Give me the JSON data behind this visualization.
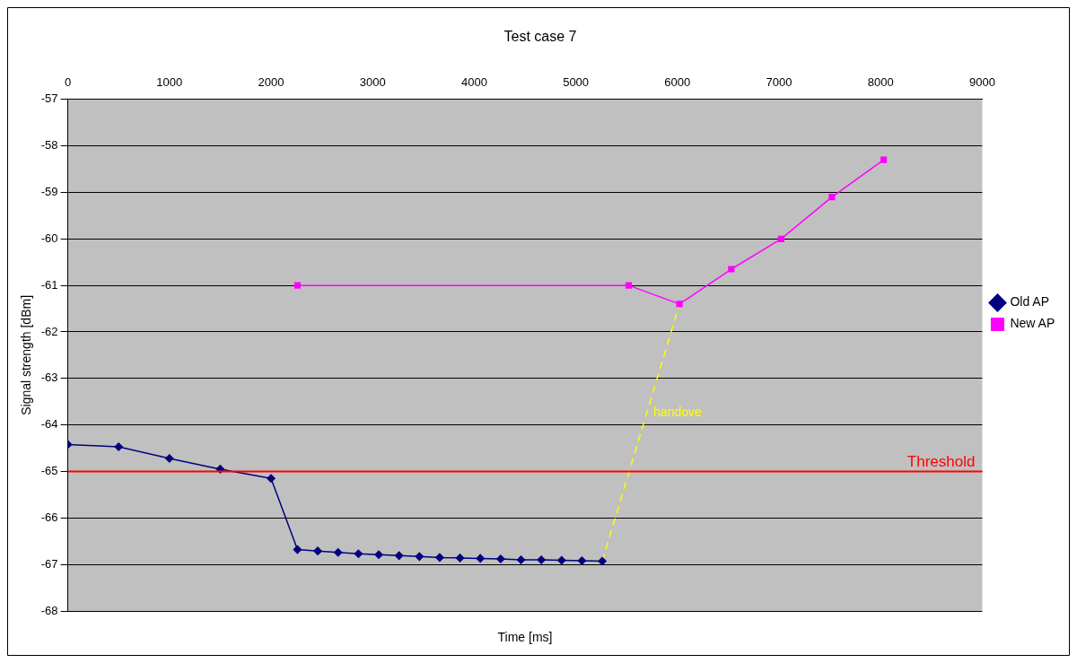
{
  "chart_data": {
    "type": "line",
    "title": "Test case 7",
    "xlabel": "Time [ms]",
    "ylabel": "Signal strength [dBm]",
    "xlim": [
      0,
      9000
    ],
    "xticks": [
      0,
      1000,
      2000,
      3000,
      4000,
      5000,
      6000,
      7000,
      8000,
      9000
    ],
    "ylim": [
      -68,
      -57
    ],
    "yticks": [
      -68,
      -67,
      -66,
      -65,
      -64,
      -63,
      -62,
      -61,
      -60,
      -59,
      -58,
      -57
    ],
    "grid": "y",
    "legend": "right",
    "series": [
      {
        "name": "Old AP",
        "color": "#000080",
        "marker": "diamond",
        "x": [
          0,
          500,
          1000,
          1500,
          2000,
          2260,
          2460,
          2660,
          2860,
          3060,
          3260,
          3460,
          3660,
          3860,
          4060,
          4260,
          4460,
          4660,
          4860,
          5060,
          5260
        ],
        "values": [
          -64.42,
          -64.47,
          -64.72,
          -64.95,
          -65.15,
          -66.68,
          -66.71,
          -66.74,
          -66.77,
          -66.79,
          -66.81,
          -66.83,
          -66.85,
          -66.86,
          -66.87,
          -66.88,
          -66.9,
          -66.9,
          -66.91,
          -66.92,
          -66.93
        ]
      },
      {
        "name": "New AP",
        "color": "#ff00ff",
        "marker": "square",
        "x": [
          2260,
          5520,
          6020,
          6530,
          7020,
          7520,
          8030
        ],
        "values": [
          -61,
          -61,
          -61.4,
          -60.65,
          -60,
          -59.1,
          -58.3
        ]
      },
      {
        "color": "#ffff00",
        "marker": "none",
        "line_style": "dashed",
        "x": [
          5260,
          6020
        ],
        "values": [
          -66.93,
          -61.4
        ]
      }
    ],
    "ref_lines": [
      {
        "axis": "y",
        "value": -65,
        "label": "Threshold",
        "color": "#ff0000"
      }
    ],
    "annotations": [
      "handove"
    ]
  }
}
